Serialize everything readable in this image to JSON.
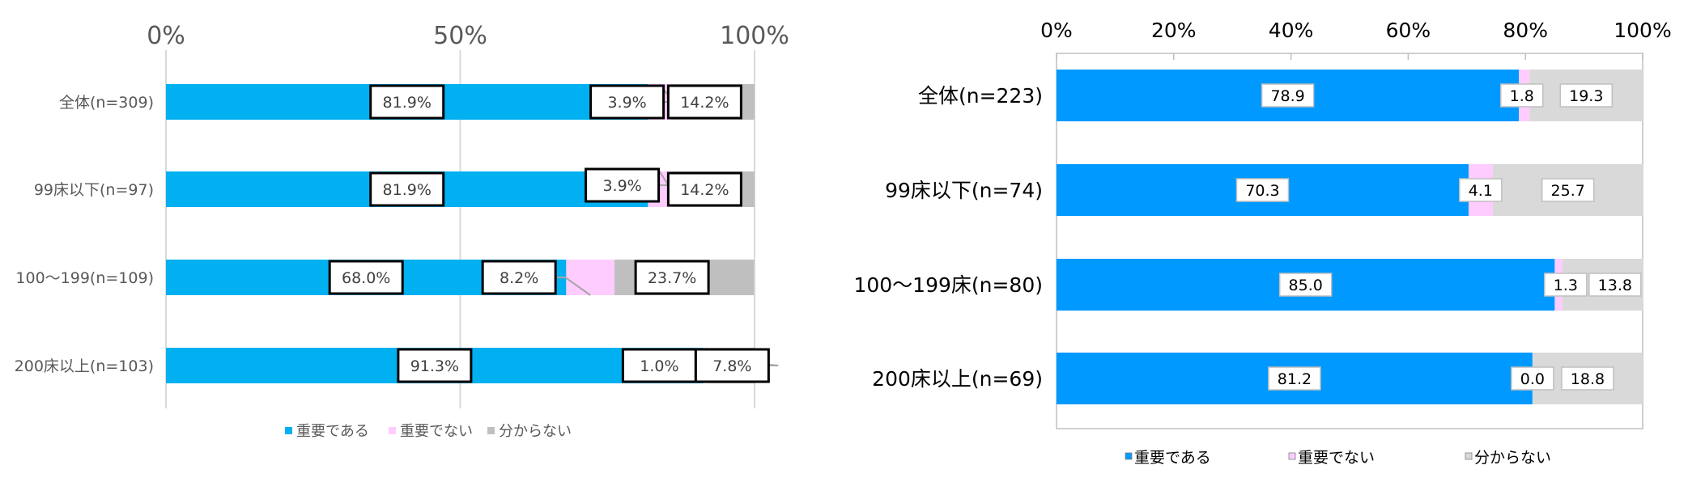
{
  "chart_data": [
    {
      "type": "bar",
      "stacked": true,
      "orientation": "horizontal",
      "categories": [
        "全体(n=309)",
        "99床以下(n=97)",
        "100～199(n=109)",
        "200床以上(n=103)"
      ],
      "x_ticks": [
        "0%",
        "50%",
        "100%"
      ],
      "xlim": [
        0,
        100
      ],
      "grid": true,
      "legend_position": "bottom",
      "series": [
        {
          "name": "重要である",
          "values": [
            81.9,
            81.9,
            68.0,
            91.3
          ],
          "labels": [
            "81.9%",
            "81.9%",
            "68.0%",
            "91.3%"
          ],
          "color": "#00B0F0"
        },
        {
          "name": "重要でない",
          "values": [
            3.9,
            3.9,
            8.2,
            1.0
          ],
          "labels": [
            "3.9%",
            "3.9%",
            "8.2%",
            "1.0%"
          ],
          "color": "#FFCCFF"
        },
        {
          "name": "分からない",
          "values": [
            14.2,
            14.2,
            23.7,
            7.8
          ],
          "labels": [
            "14.2%",
            "14.2%",
            "23.7%",
            "7.8%"
          ],
          "color": "#BFBFBF"
        }
      ]
    },
    {
      "type": "bar",
      "stacked": true,
      "orientation": "horizontal",
      "categories": [
        "全体(n=223)",
        "99床以下(n=74)",
        "100～199床(n=80)",
        "200床以上(n=69)"
      ],
      "x_ticks": [
        "0%",
        "20%",
        "40%",
        "60%",
        "80%",
        "100%"
      ],
      "xlim": [
        0,
        100
      ],
      "grid": false,
      "legend_position": "bottom",
      "series": [
        {
          "name": "重要である",
          "values": [
            78.9,
            70.3,
            85.0,
            81.2
          ],
          "labels": [
            "78.9",
            "70.3",
            "85.0",
            "81.2"
          ],
          "color": "#0099FF"
        },
        {
          "name": "重要でない",
          "values": [
            1.8,
            4.1,
            1.3,
            0.0
          ],
          "labels": [
            "1.8",
            "4.1",
            "1.3",
            "0.0"
          ],
          "color": "#FFCCFF"
        },
        {
          "name": "分からない",
          "values": [
            19.3,
            25.7,
            13.8,
            18.8
          ],
          "labels": [
            "19.3",
            "25.7",
            "13.8",
            "18.8"
          ],
          "color": "#D9D9D9"
        }
      ]
    }
  ]
}
